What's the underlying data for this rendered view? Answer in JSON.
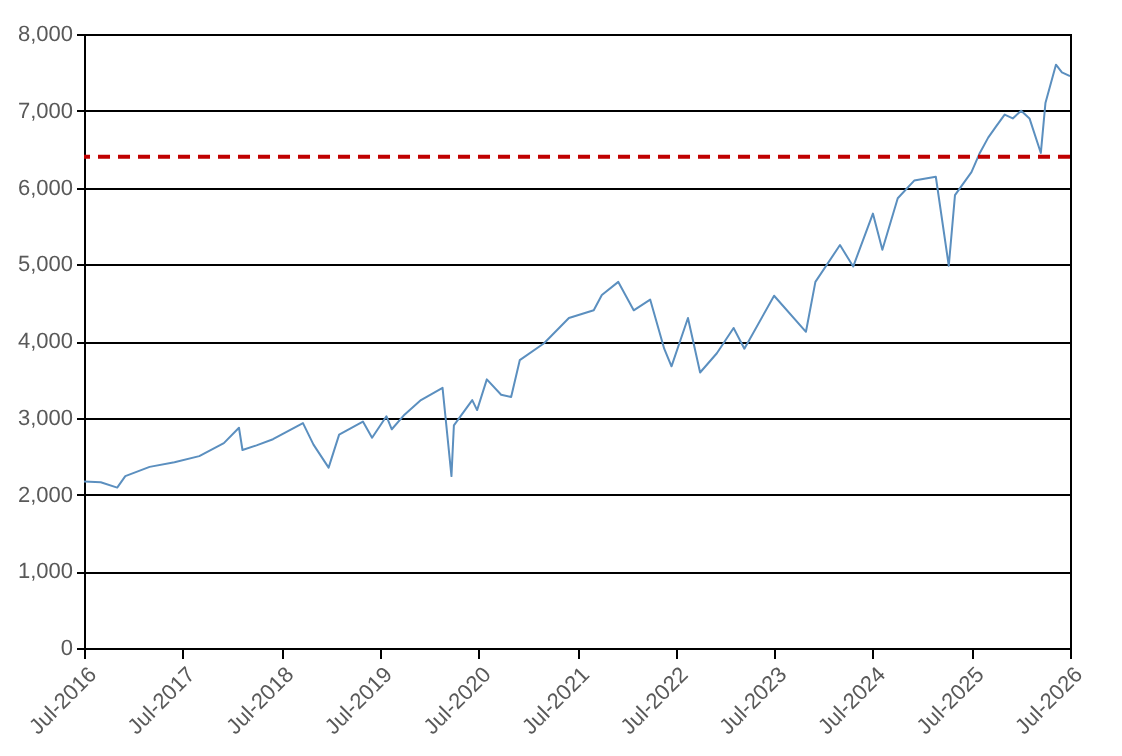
{
  "chart_data": {
    "type": "line",
    "x": [
      "2016-07",
      "2016-09",
      "2016-11",
      "2016-12",
      "2017-03",
      "2017-06",
      "2017-09",
      "2017-12",
      "2018-01-26",
      "2018-02-08",
      "2018-04",
      "2018-06",
      "2018-09-20",
      "2018-10-29",
      "2018-12-24",
      "2019-02",
      "2019-04-30",
      "2019-06-03",
      "2019-07-26",
      "2019-08-15",
      "2019-10",
      "2019-12",
      "2020-02-19",
      "2020-03-23",
      "2020-04",
      "2020-06-08",
      "2020-06-26",
      "2020-08",
      "2020-09-23",
      "2020-10-30",
      "2020-12",
      "2021-03",
      "2021-06",
      "2021-09",
      "2021-10",
      "2021-12",
      "2022-01-27",
      "2022-03-29",
      "2022-05-20",
      "2022-06-16",
      "2022-08-16",
      "2022-09-30",
      "2022-12",
      "2023-02",
      "2023-03-13",
      "2023-07",
      "2023-10-27",
      "2023-12",
      "2024-03",
      "2024-04-19",
      "2024-07",
      "2024-08-05",
      "2024-10",
      "2024-12",
      "2025-02-19",
      "2025-04-08",
      "2025-05",
      "2025-07",
      "2025-08",
      "2025-09",
      "2025-10",
      "2025-11",
      "2025-12",
      "2026-01",
      "2026-02",
      "2026-03-15",
      "2026-04",
      "2026-05-10",
      "2026-06",
      "2026-07"
    ],
    "series": [
      {
        "color": "#5b8fbf",
        "values": [
          2170,
          2160,
          2090,
          2240,
          2360,
          2420,
          2500,
          2670,
          2870,
          2580,
          2640,
          2720,
          2930,
          2650,
          2350,
          2780,
          2950,
          2740,
          3020,
          2850,
          3040,
          3230,
          3390,
          2240,
          2900,
          3230,
          3100,
          3500,
          3300,
          3270,
          3750,
          3970,
          4300,
          4400,
          4600,
          4770,
          4400,
          4540,
          3900,
          3670,
          4300,
          3590,
          3840,
          4170,
          3900,
          4590,
          4120,
          4770,
          5250,
          4970,
          5660,
          5190,
          5860,
          6090,
          6140,
          4980,
          5900,
          6200,
          6450,
          6650,
          6800,
          6950,
          6900,
          7000,
          6900,
          6450,
          7100,
          7600,
          7500,
          7450
        ]
      }
    ],
    "xlim": [
      "2016-07",
      "2026-07"
    ],
    "xticks": [
      {
        "value": "2016-07",
        "label": "Jul-2016"
      },
      {
        "value": "2017-07",
        "label": "Jul-2017"
      },
      {
        "value": "2018-07",
        "label": "Jul-2018"
      },
      {
        "value": "2019-07",
        "label": "Jul-2019"
      },
      {
        "value": "2020-07",
        "label": "Jul-2020"
      },
      {
        "value": "2021-07",
        "label": "Jul-2021"
      },
      {
        "value": "2022-07",
        "label": "Jul-2022"
      },
      {
        "value": "2023-07",
        "label": "Jul-2023"
      },
      {
        "value": "2024-07",
        "label": "Jul-2024"
      },
      {
        "value": "2025-07",
        "label": "Jul-2025"
      },
      {
        "value": "2026-07",
        "label": "Jul-2026"
      }
    ],
    "ylim": [
      0,
      8000
    ],
    "yticks": [
      0,
      {
        "value": 1000,
        "label": "1,000"
      },
      {
        "value": 2000,
        "label": "2,000"
      },
      {
        "value": 3000,
        "label": "3,000"
      },
      {
        "value": 4000,
        "label": "4,000"
      },
      {
        "value": 5000,
        "label": "5,000"
      },
      {
        "value": 6000,
        "label": "6,000"
      },
      {
        "value": 7000,
        "label": "7,000"
      },
      {
        "value": 8000,
        "label": "8,000"
      }
    ],
    "ref_lines": [
      {
        "axis": "y",
        "value": 6400,
        "color": "#c00000",
        "line_style": "dashed"
      }
    ],
    "grid": "y",
    "line_style": "solid",
    "marker": "none"
  }
}
